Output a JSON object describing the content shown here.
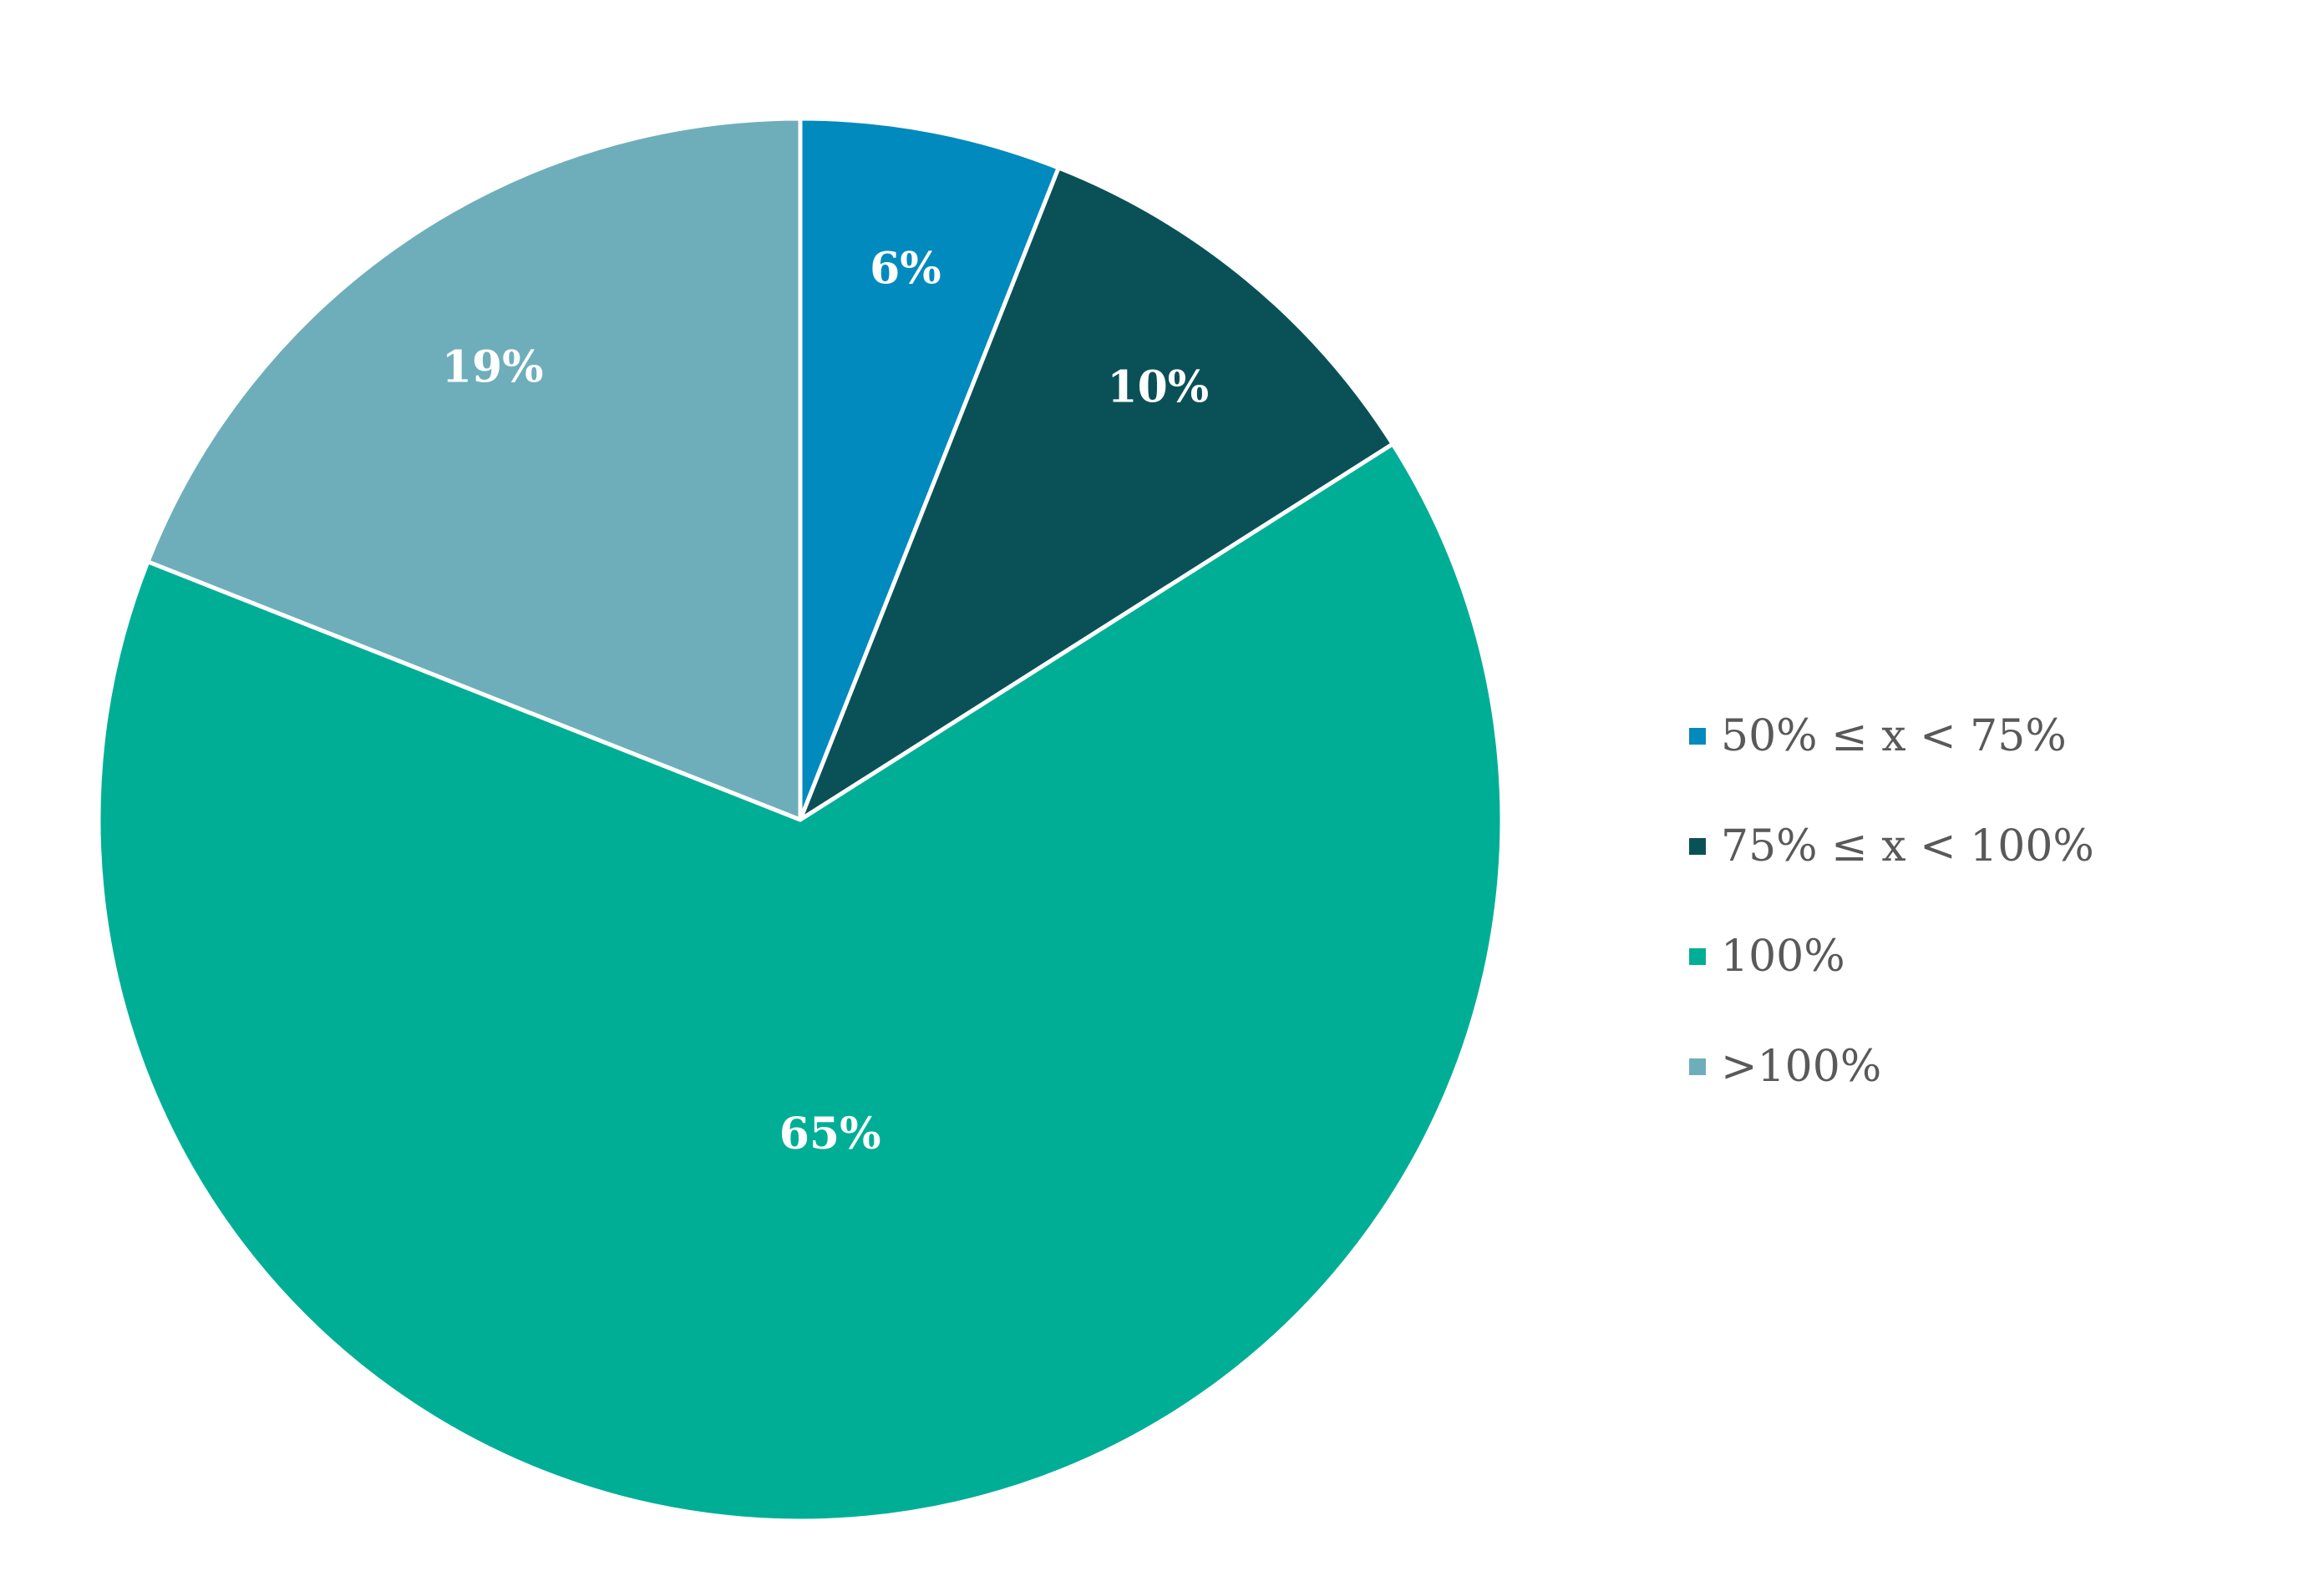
{
  "chart_data": {
    "type": "pie",
    "start_angle_deg": 0,
    "direction": "clockwise",
    "legend_position": "right",
    "slices": [
      {
        "label": "50% ≤ x < 75%",
        "value": 6,
        "value_label": "6%",
        "color": "#008ABE"
      },
      {
        "label": "75% ≤ x < 100%",
        "value": 10,
        "value_label": "10%",
        "color": "#0A5157"
      },
      {
        "label": "100%",
        "value": 65,
        "value_label": "65%",
        "color": "#00AE96"
      },
      {
        "label": ">100%",
        "value": 19,
        "value_label": "19%",
        "color": "#6EAEBB"
      }
    ]
  }
}
